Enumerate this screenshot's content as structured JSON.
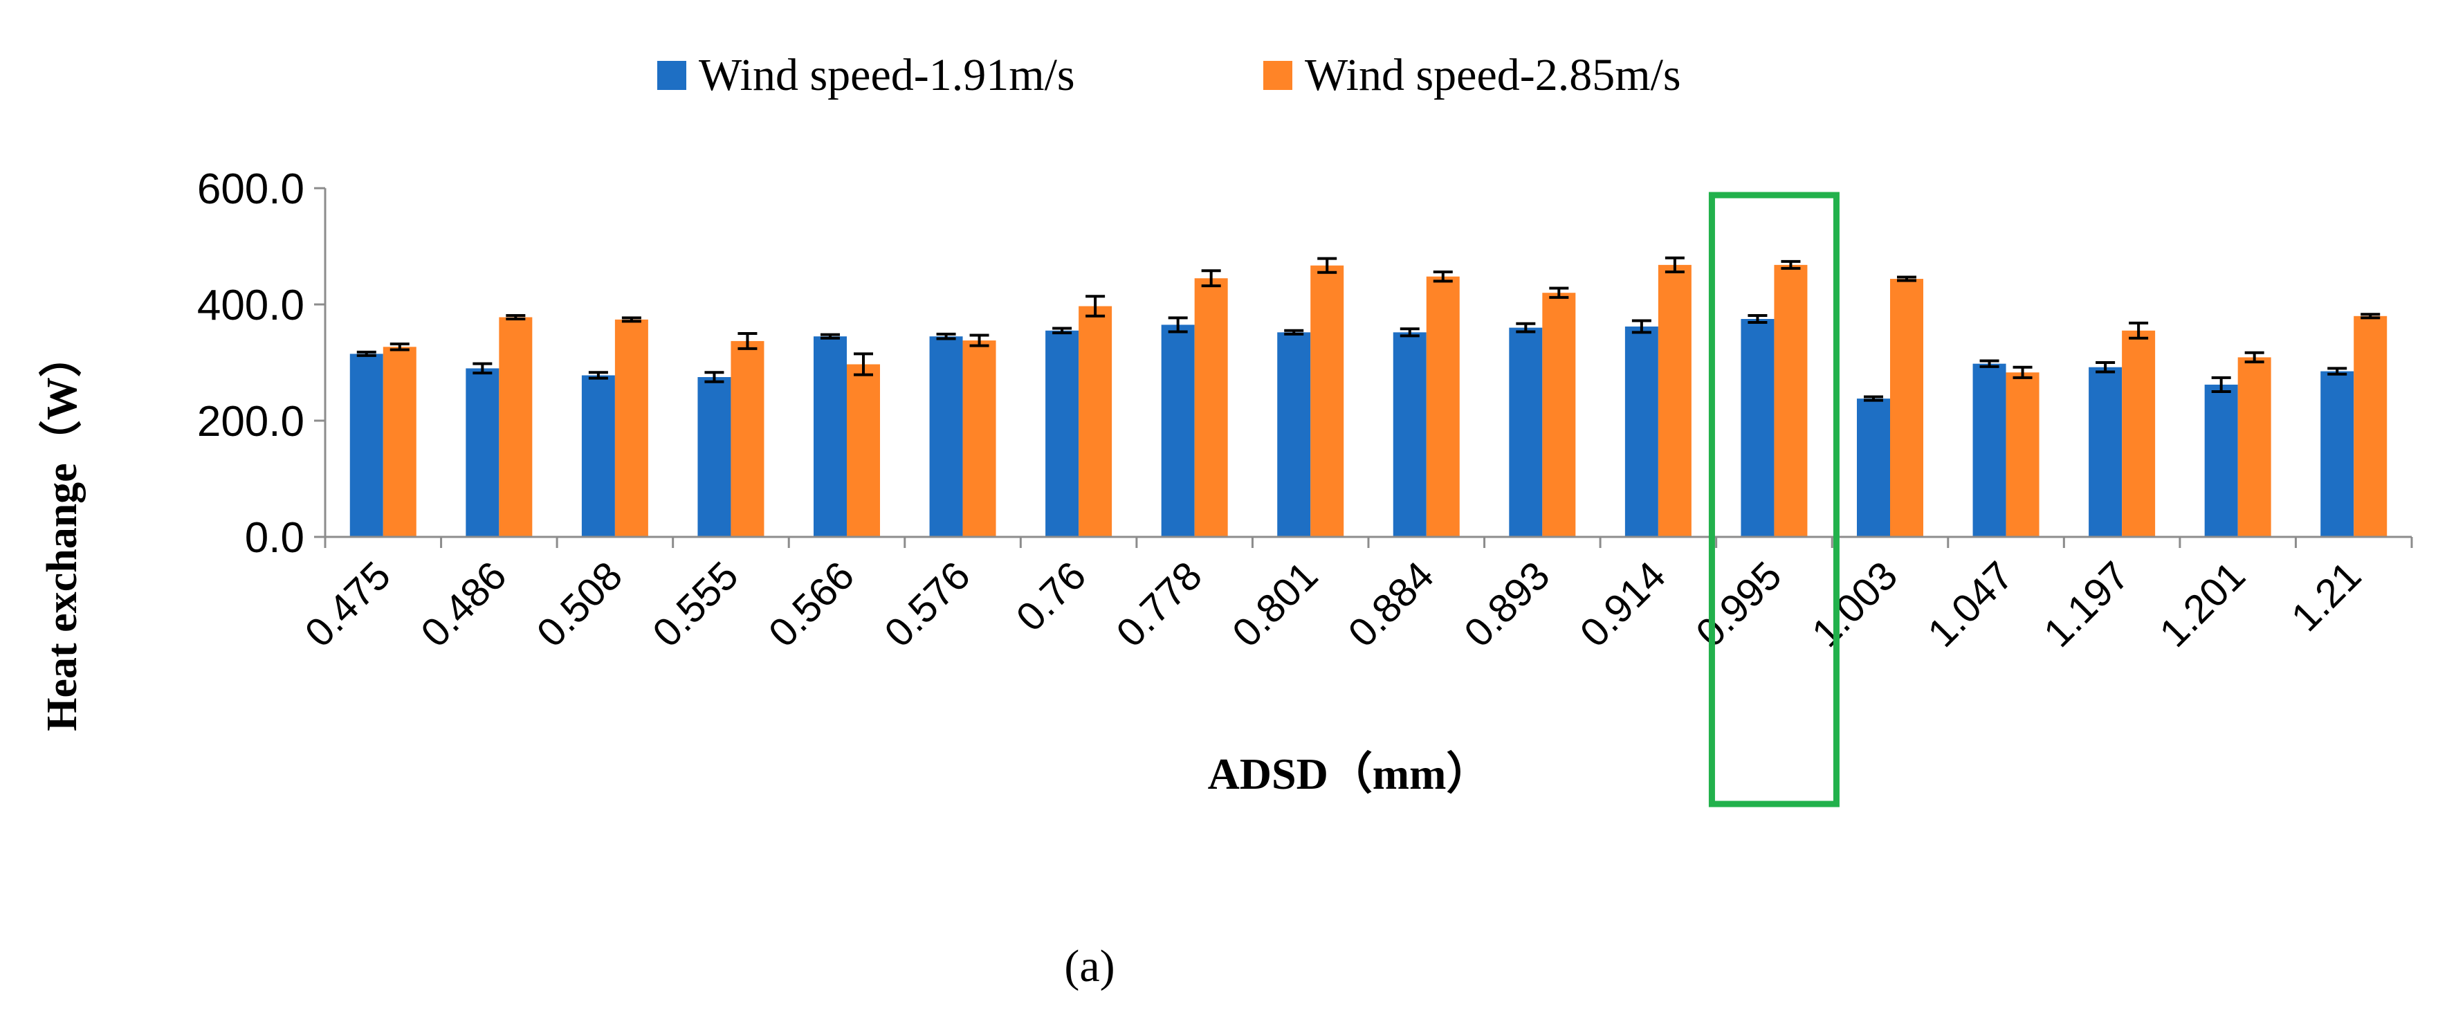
{
  "chart_data": {
    "type": "bar",
    "title": "",
    "xlabel": "ADSD（mm）",
    "ylabel": "Heat exchange（W）",
    "ylim": [
      0,
      600
    ],
    "yticks": [
      0,
      200,
      400,
      600
    ],
    "ytick_labels": [
      "0.0",
      "200.0",
      "400.0",
      "600.0"
    ],
    "categories": [
      "0.475",
      "0.486",
      "0.508",
      "0.555",
      "0.566",
      "0.576",
      "0.76",
      "0.778",
      "0.801",
      "0.884",
      "0.893",
      "0.914",
      "0.995",
      "1.003",
      "1.047",
      "1.197",
      "1.201",
      "1.21"
    ],
    "series": [
      {
        "name": "Wind speed-1.91m/s",
        "color": "#1E6FC4",
        "values": [
          315,
          290,
          278,
          275,
          345,
          345,
          355,
          365,
          352,
          352,
          360,
          362,
          375,
          238,
          298,
          292,
          262,
          285
        ],
        "errors": [
          3,
          8,
          5,
          8,
          3,
          4,
          4,
          12,
          3,
          6,
          7,
          10,
          6,
          3,
          5,
          8,
          12,
          5
        ]
      },
      {
        "name": "Wind speed-2.85m/s",
        "color": "#FF8427",
        "values": [
          327,
          378,
          374,
          337,
          297,
          338,
          397,
          445,
          467,
          448,
          420,
          468,
          468,
          444,
          283,
          355,
          309,
          380
        ],
        "errors": [
          5,
          3,
          3,
          13,
          18,
          9,
          17,
          13,
          12,
          8,
          8,
          12,
          6,
          3,
          9,
          13,
          8,
          3
        ]
      }
    ],
    "highlight_category": "0.995",
    "highlight_color": "#22B14C",
    "legend_position": "top-center",
    "grid": false,
    "panel_label": "(a)"
  }
}
